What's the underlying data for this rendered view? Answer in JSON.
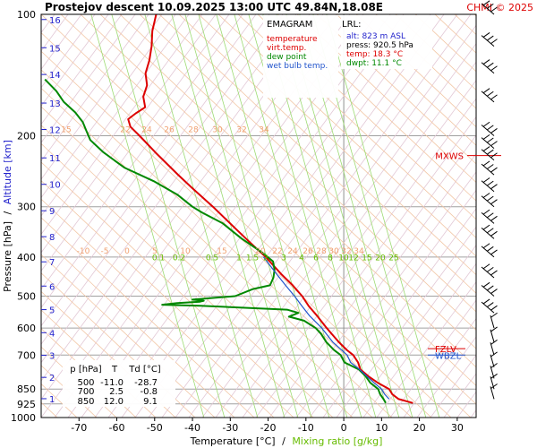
{
  "header": {
    "title": "Prostejov   descent   10.09.2025 13:00 UTC  49.84N,18.08E",
    "credit": "CHMI © 2025"
  },
  "legend": {
    "title": "EMAGRAM",
    "items": [
      {
        "label": "temperature",
        "color": "#dd0000"
      },
      {
        "label": "virt.temp.",
        "color": "#dd0000"
      },
      {
        "label": "dew point",
        "color": "#008800"
      },
      {
        "label": "wet bulb temp.",
        "color": "#2255cc"
      }
    ]
  },
  "lrl": {
    "title": "LRL:",
    "lines": [
      {
        "label": "alt: 823 m ASL",
        "color": "#2222cc"
      },
      {
        "label": "press: 920.5 hPa",
        "color": "#000000"
      },
      {
        "label": "temp: 18.3 °C",
        "color": "#dd0000"
      },
      {
        "label": "dwpt: 11.1 °C",
        "color": "#008800"
      }
    ]
  },
  "table": {
    "headers": [
      "p [hPa]",
      "T",
      "Td [°C]"
    ],
    "rows": [
      [
        "500",
        "-11.0",
        "-28.7"
      ],
      [
        "700",
        "2.5",
        "-0.8"
      ],
      [
        "850",
        "12.0",
        "9.1"
      ]
    ]
  },
  "chart_data": {
    "type": "line",
    "xlabel": "Temperature [°C]",
    "xlabel2": "Mixing ratio [g/kg]",
    "ylabel": "Pressure [hPa]",
    "ylabel2": "Altitude [km]",
    "ylabel_sep": "/",
    "xlabel_sep": "/",
    "xlim": [
      -80,
      35
    ],
    "ylim": [
      1000,
      100
    ],
    "y_scale": "log",
    "x_ticks": [
      -70,
      -60,
      -50,
      -40,
      -30,
      -20,
      -10,
      0,
      10,
      20,
      30
    ],
    "pressure_ticks": [
      100,
      200,
      300,
      400,
      500,
      600,
      700,
      850,
      925,
      1000
    ],
    "altitude_ticks": [
      {
        "km": "1",
        "p": 898
      },
      {
        "km": "2",
        "p": 795
      },
      {
        "km": "3",
        "p": 701
      },
      {
        "km": "4",
        "p": 616
      },
      {
        "km": "5",
        "p": 540
      },
      {
        "km": "6",
        "p": 472
      },
      {
        "km": "7",
        "p": 411
      },
      {
        "km": "8",
        "p": 356
      },
      {
        "km": "9",
        "p": 307
      },
      {
        "km": "10",
        "p": 264
      },
      {
        "km": "11",
        "p": 227
      },
      {
        "km": "12",
        "p": 193
      },
      {
        "km": "13",
        "p": 166
      },
      {
        "km": "14",
        "p": 141
      },
      {
        "km": "15",
        "p": 121
      },
      {
        "km": "16",
        "p": 103
      }
    ],
    "mixing_ratio_labels": [
      "0.1",
      "0.2",
      "0.5",
      "1",
      "1.5",
      "2",
      "3",
      "4",
      "6",
      "8",
      "10",
      "12",
      "15",
      "20",
      "25"
    ],
    "mixing_ratio_labels_at_p": 395,
    "adiabat_labels_row1": {
      "p": 200,
      "values": [
        "15",
        "22",
        "24",
        "26",
        "28",
        "30",
        "32",
        "34"
      ]
    },
    "adiabat_labels_row2": {
      "p": 400,
      "values": [
        "-10",
        "-5",
        "0",
        "5",
        "10",
        "15",
        "20",
        "22",
        "24",
        "26",
        "28",
        "30",
        "32",
        "34"
      ]
    },
    "series": [
      {
        "name": "temperature",
        "color": "#dd0000",
        "points": [
          [
            920.5,
            18.3
          ],
          [
            900,
            14.5
          ],
          [
            875,
            12.8
          ],
          [
            850,
            12.0
          ],
          [
            820,
            9.0
          ],
          [
            790,
            6.5
          ],
          [
            760,
            4.4
          ],
          [
            730,
            3.8
          ],
          [
            700,
            2.5
          ],
          [
            680,
            0.8
          ],
          [
            650,
            -1.3
          ],
          [
            620,
            -3.2
          ],
          [
            600,
            -4.5
          ],
          [
            560,
            -7.0
          ],
          [
            530,
            -9.2
          ],
          [
            500,
            -11.0
          ],
          [
            470,
            -13.5
          ],
          [
            440,
            -16.6
          ],
          [
            400,
            -20.6
          ],
          [
            370,
            -24.5
          ],
          [
            340,
            -28.6
          ],
          [
            300,
            -34.6
          ],
          [
            270,
            -40.0
          ],
          [
            250,
            -43.8
          ],
          [
            220,
            -49.8
          ],
          [
            200,
            -54.0
          ],
          [
            190,
            -56.4
          ],
          [
            182,
            -57.0
          ],
          [
            176,
            -55.0
          ],
          [
            170,
            -52.5
          ],
          [
            160,
            -53.0
          ],
          [
            150,
            -52.0
          ],
          [
            140,
            -52.4
          ],
          [
            130,
            -51.4
          ],
          [
            120,
            -50.8
          ],
          [
            110,
            -50.6
          ],
          [
            100,
            -49.6
          ]
        ]
      },
      {
        "name": "dew point",
        "color": "#008800",
        "points": [
          [
            920.5,
            11.1
          ],
          [
            900,
            10.5
          ],
          [
            875,
            9.6
          ],
          [
            850,
            9.1
          ],
          [
            820,
            7.0
          ],
          [
            790,
            5.8
          ],
          [
            760,
            4.0
          ],
          [
            730,
            0.2
          ],
          [
            700,
            -0.8
          ],
          [
            680,
            -2.6
          ],
          [
            650,
            -4.6
          ],
          [
            620,
            -6.0
          ],
          [
            600,
            -7.4
          ],
          [
            575,
            -10.5
          ],
          [
            562,
            -14.5
          ],
          [
            550,
            -12.0
          ],
          [
            540,
            -15.0
          ],
          [
            528,
            -38.0
          ],
          [
            525,
            -48.0
          ],
          [
            520,
            -44.0
          ],
          [
            516,
            -38.0
          ],
          [
            513,
            -37.0
          ],
          [
            510,
            -40.0
          ],
          [
            500,
            -28.7
          ],
          [
            480,
            -24.0
          ],
          [
            470,
            -19.5
          ],
          [
            450,
            -18.6
          ],
          [
            430,
            -18.3
          ],
          [
            410,
            -18.7
          ],
          [
            390,
            -21.5
          ],
          [
            360,
            -27.0
          ],
          [
            330,
            -32.0
          ],
          [
            310,
            -37.5
          ],
          [
            300,
            -40.0
          ],
          [
            280,
            -44.0
          ],
          [
            260,
            -50.0
          ],
          [
            240,
            -58.0
          ],
          [
            220,
            -63.5
          ],
          [
            205,
            -67.0
          ],
          [
            195,
            -68.0
          ],
          [
            185,
            -69.0
          ],
          [
            175,
            -71.0
          ],
          [
            165,
            -74.0
          ],
          [
            155,
            -76.0
          ],
          [
            145,
            -79.0
          ]
        ]
      },
      {
        "name": "wet bulb temp.",
        "color": "#2255cc",
        "points": [
          [
            900,
            12.0
          ],
          [
            875,
            10.8
          ],
          [
            850,
            10.0
          ],
          [
            820,
            8.0
          ],
          [
            790,
            6.1
          ],
          [
            760,
            4.2
          ],
          [
            730,
            1.8
          ],
          [
            700,
            0.9
          ],
          [
            650,
            -2.9
          ],
          [
            600,
            -5.8
          ],
          [
            560,
            -9.0
          ],
          [
            530,
            -11.0
          ],
          [
            500,
            -13.0
          ],
          [
            470,
            -15.4
          ],
          [
            440,
            -17.8
          ],
          [
            400,
            -21.2
          ]
        ]
      }
    ],
    "markers": [
      {
        "label": "MXWS",
        "p": 224,
        "color": "#dd0000"
      },
      {
        "label": "FZLV",
        "p": 675,
        "color": "#dd0000"
      },
      {
        "label": "WBZL",
        "p": 700,
        "color": "#2255cc"
      }
    ],
    "wind_barbs_at_p": [
      100,
      120,
      140,
      165,
      200,
      215,
      230,
      250,
      275,
      300,
      330,
      360,
      400,
      450,
      500,
      550,
      600,
      650,
      700,
      750,
      800,
      850,
      900
    ]
  }
}
